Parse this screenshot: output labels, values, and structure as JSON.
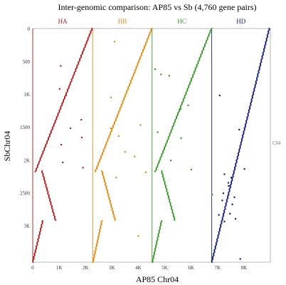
{
  "chart_data": {
    "type": "scatter",
    "title": "Inter-genomic comparison: AP85 vs Sb (4,760 gene pairs)",
    "xlabel": "AP85  Chr04",
    "ylabel": "SbChr04",
    "right_label": "C04",
    "xlim": [
      0,
      9000
    ],
    "ylim": [
      0,
      3560
    ],
    "y_inverted": true,
    "grid": false,
    "x_ticks": [
      {
        "value": 0,
        "label": "0"
      },
      {
        "value": 1000,
        "label": "1K"
      },
      {
        "value": 2000,
        "label": "2K"
      },
      {
        "value": 3000,
        "label": "3K"
      },
      {
        "value": 4000,
        "label": "4K"
      },
      {
        "value": 5000,
        "label": "5K"
      },
      {
        "value": 6000,
        "label": "6K"
      },
      {
        "value": 7000,
        "label": "7K"
      },
      {
        "value": 8000,
        "label": "8K"
      }
    ],
    "y_ticks": [
      {
        "value": 0,
        "label": "0"
      },
      {
        "value": 500,
        "label": "500"
      },
      {
        "value": 1000,
        "label": "1K"
      },
      {
        "value": 1500,
        "label": "1500"
      },
      {
        "value": 2000,
        "label": "2K"
      },
      {
        "value": 2500,
        "label": "2500"
      },
      {
        "value": 3000,
        "label": "3K"
      }
    ],
    "subgenomes": [
      {
        "name": "HA",
        "color": "#b22222",
        "start": 0,
        "end": 2270,
        "segments": [
          {
            "x": [
              100,
              2250
            ],
            "y": [
              2180,
              0
            ]
          },
          {
            "x": [
              350,
              860
            ],
            "y": [
              2170,
              2920
            ]
          },
          {
            "x": [
              0,
              380
            ],
            "y": [
              3560,
              2930
            ]
          }
        ],
        "scatter": [
          [
            1260,
            1020
          ],
          [
            1080,
            1770
          ],
          [
            1840,
            1390
          ],
          [
            1900,
            2120
          ],
          [
            1430,
            1520
          ],
          [
            1020,
            920
          ],
          [
            1860,
            1660
          ],
          [
            1140,
            2040
          ],
          [
            1060,
            570
          ]
        ]
      },
      {
        "name": "HB",
        "color": "#e08e1a",
        "start": 2270,
        "end": 4520,
        "segments": [
          {
            "x": [
              2370,
              4510
            ],
            "y": [
              2180,
              0
            ]
          },
          {
            "x": [
              2620,
              3120
            ],
            "y": [
              2170,
              2920
            ]
          },
          {
            "x": [
              2280,
              2620
            ],
            "y": [
              3560,
              2930
            ]
          }
        ],
        "scatter": [
          [
            3100,
            200
          ],
          [
            4080,
            1470
          ],
          [
            4280,
            2190
          ],
          [
            3160,
            2270
          ],
          [
            2950,
            1520
          ],
          [
            3860,
            1950
          ],
          [
            3500,
            1880
          ],
          [
            3260,
            1640
          ],
          [
            2960,
            1050
          ],
          [
            4000,
            3160
          ]
        ]
      },
      {
        "name": "HC",
        "color": "#3f9a2e",
        "start": 4520,
        "end": 6780,
        "segments": [
          {
            "x": [
              4640,
              6770
            ],
            "y": [
              2180,
              0
            ]
          },
          {
            "x": [
              4880,
              5380
            ],
            "y": [
              2170,
              2920
            ]
          },
          {
            "x": [
              4530,
              4880
            ],
            "y": [
              3560,
              2930
            ]
          }
        ],
        "scatter": [
          [
            6800,
            2530
          ],
          [
            4860,
            700
          ],
          [
            5170,
            720
          ],
          [
            4640,
            620
          ],
          [
            5890,
            1170
          ],
          [
            5600,
            1230
          ],
          [
            4730,
            1580
          ],
          [
            5230,
            2010
          ],
          [
            6010,
            2150
          ],
          [
            5620,
            1670
          ]
        ]
      },
      {
        "name": "HD",
        "color": "#1a237e",
        "start": 6780,
        "end": 9000,
        "segments": [
          {
            "x": [
              6780,
              8960
            ],
            "y": [
              3560,
              0
            ]
          }
        ],
        "scatter": [
          [
            7260,
            2220
          ],
          [
            7420,
            2400
          ],
          [
            7220,
            2510
          ],
          [
            7560,
            2680
          ],
          [
            7470,
            2820
          ],
          [
            7680,
            2900
          ],
          [
            7260,
            2940
          ],
          [
            7640,
            2570
          ],
          [
            7050,
            2840
          ],
          [
            7820,
            1540
          ],
          [
            8020,
            2140
          ],
          [
            7520,
            2270
          ],
          [
            7180,
            2620
          ],
          [
            7410,
            2350
          ],
          [
            7860,
            3510
          ],
          [
            7080,
            1020
          ]
        ]
      }
    ]
  }
}
